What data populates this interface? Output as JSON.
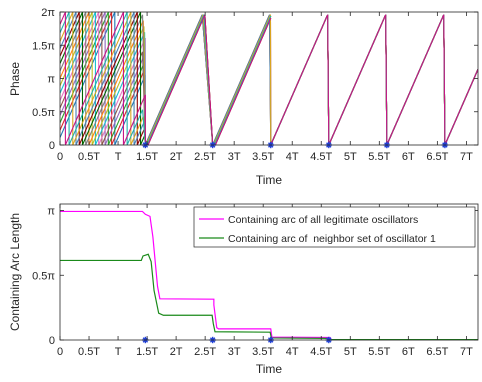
{
  "chart_data": [
    {
      "type": "line",
      "xlabel": "Time",
      "ylabel": "Phase",
      "xlim": [
        0,
        7.2
      ],
      "ylim": [
        0,
        6.2832
      ],
      "x_ticks": [
        {
          "v": 0,
          "label": "0"
        },
        {
          "v": 0.5,
          "label": "0.5T"
        },
        {
          "v": 1,
          "label": "T"
        },
        {
          "v": 1.5,
          "label": "1.5T"
        },
        {
          "v": 2,
          "label": "2T"
        },
        {
          "v": 2.5,
          "label": "2.5T"
        },
        {
          "v": 3,
          "label": "3T"
        },
        {
          "v": 3.5,
          "label": "3.5T"
        },
        {
          "v": 4,
          "label": "4T"
        },
        {
          "v": 4.5,
          "label": "4.5T"
        },
        {
          "v": 5,
          "label": "5T"
        },
        {
          "v": 5.5,
          "label": "5.5T"
        },
        {
          "v": 6,
          "label": "6T"
        },
        {
          "v": 6.5,
          "label": "6.5T"
        },
        {
          "v": 7,
          "label": "7T"
        }
      ],
      "y_ticks": [
        {
          "v": 0,
          "label": "0"
        },
        {
          "v": 1.5708,
          "label": "0.5π"
        },
        {
          "v": 3.1416,
          "label": "π"
        },
        {
          "v": 4.7124,
          "label": "1.5π"
        },
        {
          "v": 6.2832,
          "label": "2π"
        }
      ],
      "period": 1,
      "oscillator_colors": [
        "#1f77b4",
        "#d62728",
        "#2ca02c",
        "#9467bd",
        "#8c564b",
        "#e377c2",
        "#17becf",
        "#bcbd22",
        "#ff7f0e",
        "#7f7f7f",
        "#006400",
        "#8b0000",
        "#4682b4",
        "#daa520",
        "#20b2aa",
        "#c71585"
      ],
      "initial_phases": [
        0.35,
        0.7,
        1.05,
        1.4,
        1.75,
        2.1,
        2.45,
        2.8,
        3.15,
        3.5,
        3.85,
        4.2,
        4.55,
        4.9,
        5.3,
        5.7
      ],
      "sync_events": [
        1.47,
        2.63,
        3.63,
        4.63,
        5.63,
        6.63
      ],
      "event_markers": {
        "x": [
          1.47,
          2.63,
          3.63,
          4.63,
          5.63,
          6.63
        ],
        "y": 0,
        "marker": "asterisk",
        "color": "#1f3fd6"
      },
      "grid": false
    },
    {
      "type": "line",
      "xlabel": "Time",
      "ylabel": "Containing Arc Length",
      "xlim": [
        0,
        7.2
      ],
      "ylim": [
        0,
        3.3
      ],
      "x_ticks": [
        {
          "v": 0,
          "label": "0"
        },
        {
          "v": 0.5,
          "label": "0.5T"
        },
        {
          "v": 1,
          "label": "T"
        },
        {
          "v": 1.5,
          "label": "1.5T"
        },
        {
          "v": 2,
          "label": "2T"
        },
        {
          "v": 2.5,
          "label": "2.5T"
        },
        {
          "v": 3,
          "label": "3T"
        },
        {
          "v": 3.5,
          "label": "3.5T"
        },
        {
          "v": 4,
          "label": "4T"
        },
        {
          "v": 4.5,
          "label": "4.5T"
        },
        {
          "v": 5,
          "label": "5T"
        },
        {
          "v": 5.5,
          "label": "5.5T"
        },
        {
          "v": 6,
          "label": "6T"
        },
        {
          "v": 6.5,
          "label": "6.5T"
        },
        {
          "v": 7,
          "label": "7T"
        }
      ],
      "y_ticks": [
        {
          "v": 0,
          "label": "0"
        },
        {
          "v": 1.5708,
          "label": "0.5π"
        },
        {
          "v": 3.1416,
          "label": "π"
        }
      ],
      "series": [
        {
          "name": "Containing arc of all legitimate oscillators",
          "color": "#ff00ff",
          "points": [
            [
              0,
              3.12
            ],
            [
              1.42,
              3.12
            ],
            [
              1.47,
              3.05
            ],
            [
              1.55,
              3.0
            ],
            [
              1.6,
              2.5
            ],
            [
              1.68,
              1.3
            ],
            [
              1.72,
              1.0
            ],
            [
              2.65,
              0.99
            ],
            [
              2.65,
              0.85
            ],
            [
              2.7,
              0.3
            ],
            [
              2.73,
              0.27
            ],
            [
              3.63,
              0.27
            ],
            [
              3.65,
              0.07
            ],
            [
              4.65,
              0.06
            ],
            [
              4.67,
              0.01
            ],
            [
              7.2,
              0.01
            ]
          ]
        },
        {
          "name": "Containing arc of  neighbor set of oscillator 1",
          "color": "#1a8a1a",
          "points": [
            [
              0,
              1.93
            ],
            [
              1.4,
              1.93
            ],
            [
              1.43,
              2.04
            ],
            [
              1.52,
              2.08
            ],
            [
              1.57,
              1.9
            ],
            [
              1.62,
              1.2
            ],
            [
              1.7,
              0.65
            ],
            [
              1.78,
              0.6
            ],
            [
              2.62,
              0.6
            ],
            [
              2.64,
              0.4
            ],
            [
              2.67,
              0.2
            ],
            [
              3.62,
              0.19
            ],
            [
              3.64,
              0.05
            ],
            [
              4.63,
              0.04
            ],
            [
              4.65,
              0.01
            ],
            [
              7.2,
              0.01
            ]
          ]
        }
      ],
      "event_markers": {
        "x": [
          1.47,
          2.63,
          3.63,
          4.63
        ],
        "y": 0,
        "marker": "asterisk",
        "color": "#1f3fd6"
      },
      "legend": "top-right",
      "grid": false
    }
  ]
}
